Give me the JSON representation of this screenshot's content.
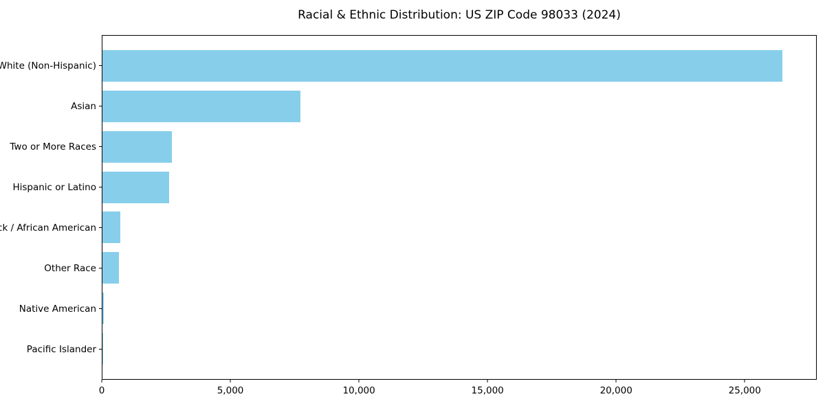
{
  "title": "Racial & Ethnic Distribution: US ZIP Code 98033 (2024)",
  "chart_data": {
    "type": "bar",
    "orientation": "horizontal",
    "title": "Racial & Ethnic Distribution: US ZIP Code 98033 (2024)",
    "xlabel": "",
    "ylabel": "",
    "categories": [
      "White (Non-Hispanic)",
      "Asian",
      "Two or More Races",
      "Hispanic or Latino",
      "Black / African American",
      "Other Race",
      "Native American",
      "Pacific Islander"
    ],
    "values": [
      26500,
      7700,
      2700,
      2600,
      700,
      650,
      50,
      20
    ],
    "xlim": [
      0,
      27800
    ],
    "x_ticks": [
      0,
      5000,
      10000,
      15000,
      20000,
      25000
    ],
    "x_tick_labels": [
      "0",
      "5,000",
      "10,000",
      "15,000",
      "20,000",
      "25,000"
    ],
    "bar_color": "#87CEEB",
    "axis_color": "#000000",
    "grid": false,
    "legend": null
  }
}
